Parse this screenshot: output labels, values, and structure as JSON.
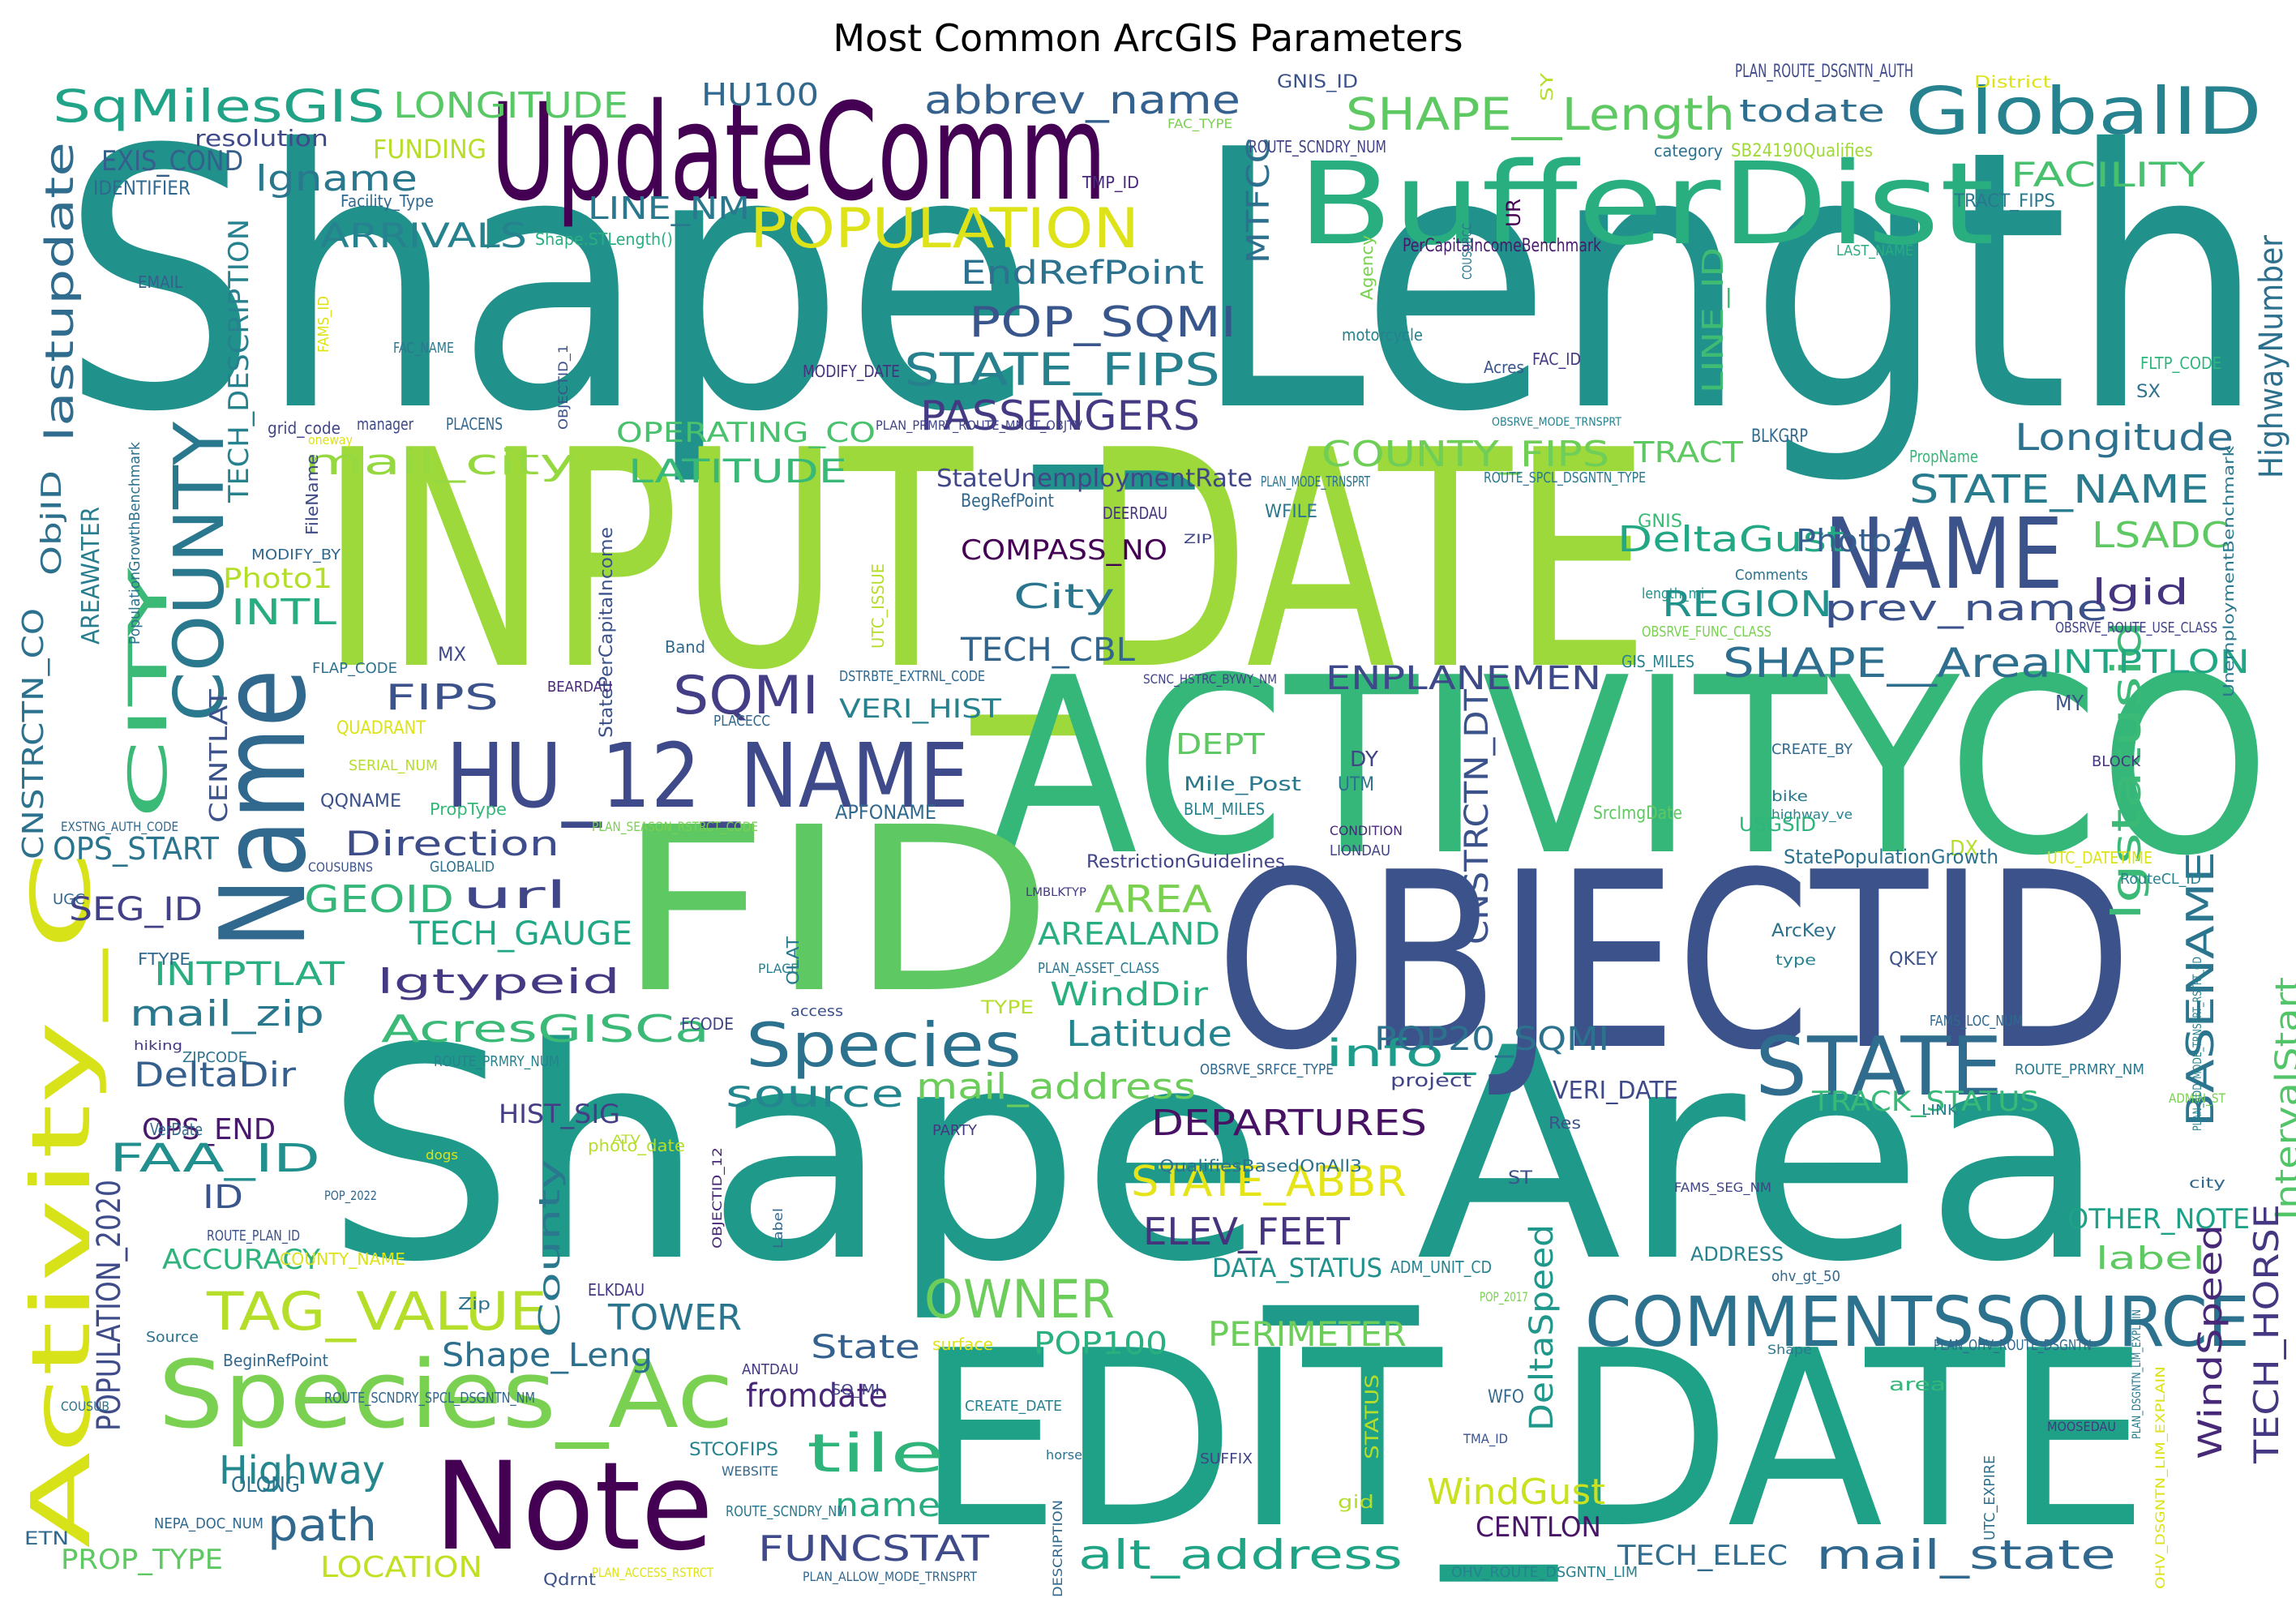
{
  "title": "Most Common ArcGIS Parameters",
  "words": [
    {
      "text": "Shape_Length",
      "color": "#21918c"
    },
    {
      "text": "INPUT_DATE",
      "color": "#9dd93b"
    },
    {
      "text": "Shape_Area",
      "color": "#1f9a8a"
    },
    {
      "text": "ACTIVITYCO",
      "color": "#35b779"
    },
    {
      "text": "EDIT_DATE",
      "color": "#1fa187"
    },
    {
      "text": "OBJECTID",
      "color": "#3b528b"
    },
    {
      "text": "FID",
      "color": "#5ec962"
    },
    {
      "text": "UpdateComm",
      "color": "#440154"
    },
    {
      "text": "BufferDist",
      "color": "#29af7f"
    },
    {
      "text": "Name",
      "color": "#31688e"
    },
    {
      "text": "Note",
      "color": "#440154"
    },
    {
      "text": "HU_12_NAME",
      "color": "#3e4a89"
    },
    {
      "text": "Activity_C",
      "color": "#d8e219"
    },
    {
      "text": "Species_Ac",
      "color": "#7ad151"
    },
    {
      "text": "COMMENTSSOURCE",
      "color": "#2c728e"
    },
    {
      "text": "NAME",
      "color": "#3b528b"
    },
    {
      "text": "STATE",
      "color": "#2f6c8e"
    },
    {
      "text": "COUNTY",
      "color": "#2a788e"
    },
    {
      "text": "GlobalID",
      "color": "#26828e"
    },
    {
      "text": "Species",
      "color": "#2c728e"
    },
    {
      "text": "CITY",
      "color": "#3aba76"
    },
    {
      "text": "POPULATION",
      "color": "#dde318"
    },
    {
      "text": "STATE_FIPS",
      "color": "#27808e"
    },
    {
      "text": "SHAPE__Length",
      "color": "#5ec962"
    },
    {
      "text": "TAG_VALUE",
      "color": "#b5de2b"
    },
    {
      "text": "abbrev_name",
      "color": "#34618d"
    },
    {
      "text": "SqMilesGIS",
      "color": "#20a386"
    },
    {
      "text": "POP_SQMI",
      "color": "#39568c"
    },
    {
      "text": "PASSENGERS",
      "color": "#443a83"
    },
    {
      "text": "SQMI",
      "color": "#433e85"
    },
    {
      "text": "OWNER",
      "color": "#6ccd5a"
    },
    {
      "text": "lastupdate",
      "color": "#2f6c8e"
    },
    {
      "text": "Highway",
      "color": "#24878e"
    },
    {
      "text": "path",
      "color": "#31688e"
    },
    {
      "text": "tile",
      "color": "#2fb47c"
    },
    {
      "text": "alt_address",
      "color": "#20a486"
    },
    {
      "text": "mail_state",
      "color": "#31688e"
    },
    {
      "text": "Longitude",
      "color": "#2d718e"
    },
    {
      "text": "STATE_NAME",
      "color": "#297b8e"
    },
    {
      "text": "SHAPE__Area",
      "color": "#2e6e8e"
    },
    {
      "text": "POPULATION_2020",
      "color": "#3e4c8a"
    },
    {
      "text": "lgstatusid",
      "color": "#3aba76"
    },
    {
      "text": "BASENAME",
      "color": "#2b758e"
    },
    {
      "text": "HighwayNumber",
      "color": "#2d708e"
    },
    {
      "text": "IntervalStart",
      "color": "#52c569"
    },
    {
      "text": "WindSpeed",
      "color": "#482878"
    },
    {
      "text": "TECH_HORSE",
      "color": "#453781"
    },
    {
      "text": "lgname",
      "color": "#2a788e"
    },
    {
      "text": "LONGITUDE",
      "color": "#58c765"
    },
    {
      "text": "FUNDING",
      "color": "#b8de29"
    },
    {
      "text": "HU100",
      "color": "#31688e"
    },
    {
      "text": "ARRIVALS",
      "color": "#26828e"
    },
    {
      "text": "LINE_NM",
      "color": "#2a788e"
    },
    {
      "text": "EndRefPoint",
      "color": "#2c718e"
    },
    {
      "text": "MTFCC",
      "color": "#2d708e"
    },
    {
      "text": "FACILITY",
      "color": "#48c16e"
    },
    {
      "text": "todate",
      "color": "#2e6e8e"
    },
    {
      "text": "COUNTY_FIPS",
      "color": "#6ece58"
    },
    {
      "text": "LATITUDE",
      "color": "#38b977"
    },
    {
      "text": "mail_city",
      "color": "#95d840"
    },
    {
      "text": "OPERATING_CO",
      "color": "#4ac16d"
    },
    {
      "text": "TRACT",
      "color": "#5ec962"
    },
    {
      "text": "LINE_ID",
      "color": "#3fbc73"
    },
    {
      "text": "LSADC",
      "color": "#5ec962"
    },
    {
      "text": "DeltaGust",
      "color": "#22a884"
    },
    {
      "text": "REGION",
      "color": "#21918c"
    },
    {
      "text": "prev_name",
      "color": "#3b528b"
    },
    {
      "text": "lgid",
      "color": "#453581"
    },
    {
      "text": "INTPTLON",
      "color": "#22a785"
    },
    {
      "text": "Photo2",
      "color": "#355f8d"
    },
    {
      "text": "ENPLANEMEN",
      "color": "#3e4989"
    },
    {
      "text": "FIPS",
      "color": "#3b528b"
    },
    {
      "text": "TECH_CBL",
      "color": "#32658e"
    },
    {
      "text": "City",
      "color": "#2a768e"
    },
    {
      "text": "COMPASS_NO",
      "color": "#440154"
    },
    {
      "text": "INTL",
      "color": "#27ad81"
    },
    {
      "text": "Photo1",
      "color": "#b5de2b"
    },
    {
      "text": "ObjID",
      "color": "#2d708e"
    },
    {
      "text": "AREAWATER",
      "color": "#287d8e"
    },
    {
      "text": "TECH_DESCRIPTION",
      "color": "#26828e"
    },
    {
      "text": "EXIS_COND",
      "color": "#355f8d"
    },
    {
      "text": "resolution",
      "color": "#3e4a89"
    },
    {
      "text": "IDENTIFIER",
      "color": "#31688e"
    },
    {
      "text": "StateUnemploymentRate",
      "color": "#404688"
    },
    {
      "text": "GEOID",
      "color": "#35b779"
    },
    {
      "text": "url",
      "color": "#404688"
    },
    {
      "text": "Direction",
      "color": "#3d4d8a"
    },
    {
      "text": "TECH_GAUGE",
      "color": "#22a785"
    },
    {
      "text": "lgtypeid",
      "color": "#443983"
    },
    {
      "text": "AREA",
      "color": "#7ad151"
    },
    {
      "text": "AREALAND",
      "color": "#29af7f"
    },
    {
      "text": "WindDir",
      "color": "#2ab07f"
    },
    {
      "text": "Latitude",
      "color": "#25848e"
    },
    {
      "text": "info_",
      "color": "#1e9b8a"
    },
    {
      "text": "POP20_SQMI",
      "color": "#2c728e"
    },
    {
      "text": "AcresGISCa",
      "color": "#3aba76"
    },
    {
      "text": "mail_zip",
      "color": "#2a788e"
    },
    {
      "text": "INTPTLAT",
      "color": "#29af7f"
    },
    {
      "text": "SEG_ID",
      "color": "#424086"
    },
    {
      "text": "OPS_START",
      "color": "#2b748e"
    },
    {
      "text": "CNSTRCTN_CO",
      "color": "#2c728e"
    },
    {
      "text": "CENTLAT",
      "color": "#3b528b"
    },
    {
      "text": "DeltaDir",
      "color": "#355f8d"
    },
    {
      "text": "OPS_END",
      "color": "#481a6c"
    },
    {
      "text": "FAA_ID",
      "color": "#218f8d"
    },
    {
      "text": "ID",
      "color": "#3a548c"
    },
    {
      "text": "ACCURACY",
      "color": "#2eb37c"
    },
    {
      "text": "source",
      "color": "#24868e"
    },
    {
      "text": "mail_address",
      "color": "#6ccd5a"
    },
    {
      "text": "DEPARTURES",
      "color": "#471164"
    },
    {
      "text": "STATE_ABBR",
      "color": "#e5e419"
    },
    {
      "text": "ELEV_FEET",
      "color": "#46337e"
    },
    {
      "text": "County",
      "color": "#2a788e"
    },
    {
      "text": "TOWER",
      "color": "#2b748e"
    },
    {
      "text": "Shape_Leng",
      "color": "#2d708e"
    },
    {
      "text": "State",
      "color": "#34618d"
    },
    {
      "text": "fromdate",
      "color": "#482677"
    },
    {
      "text": "name",
      "color": "#27ad81"
    },
    {
      "text": "POP100",
      "color": "#2ab07f"
    },
    {
      "text": "PERIMETER",
      "color": "#6ccd5a"
    },
    {
      "text": "FUNCSTAT",
      "color": "#3e4a89"
    },
    {
      "text": "DeltaSpeed",
      "color": "#1f988b"
    },
    {
      "text": "CNSTRCTN_DT",
      "color": "#3b528b"
    },
    {
      "text": "DEPT",
      "color": "#5ec962"
    },
    {
      "text": "VERI_HIST",
      "color": "#26828e"
    },
    {
      "text": "DATA_STATUS",
      "color": "#21918c"
    },
    {
      "text": "VERI_DATE",
      "color": "#3e4989"
    },
    {
      "text": "TRACK_STATUS",
      "color": "#38b977"
    },
    {
      "text": "OTHER_NOTE",
      "color": "#1fa188"
    },
    {
      "text": "label",
      "color": "#5ec962"
    },
    {
      "text": "WindGust",
      "color": "#cae11f"
    },
    {
      "text": "CENTLON",
      "color": "#481567"
    },
    {
      "text": "TECH_ELEC",
      "color": "#2f6c8e"
    },
    {
      "text": "HIST_SIG",
      "color": "#433e85"
    },
    {
      "text": "PROP_TYPE",
      "color": "#5ec962"
    },
    {
      "text": "LOCATION",
      "color": "#c2df23"
    },
    {
      "text": "OLONG",
      "color": "#2d718e"
    },
    {
      "text": "ETN",
      "color": "#31688e"
    },
    {
      "text": "ADDRESS",
      "color": "#26828e"
    },
    {
      "text": "GNIS_ID",
      "color": "#3b528b"
    },
    {
      "text": "PLAN_ROUTE_DSGNTN_AUTH",
      "color": "#3e4a89"
    },
    {
      "text": "District",
      "color": "#dde318"
    },
    {
      "text": "SY",
      "color": "#b5de2b"
    },
    {
      "text": "FAC_TYPE",
      "color": "#7ad151"
    },
    {
      "text": "ROUTE_SCNDRY_NUM",
      "color": "#414487"
    },
    {
      "text": "category",
      "color": "#2c728e"
    },
    {
      "text": "SB24190Qualifies",
      "color": "#a0da39"
    },
    {
      "text": "TRACT_FIPS",
      "color": "#2a788e"
    },
    {
      "text": "TMP_ID",
      "color": "#482878"
    },
    {
      "text": "Facility_Type",
      "color": "#31688e"
    },
    {
      "text": "Shape.STLength()",
      "color": "#29af7f"
    },
    {
      "text": "UR",
      "color": "#440154"
    },
    {
      "text": "PerCapitaIncomeBenchmark",
      "color": "#481a6c"
    },
    {
      "text": "LAST_NAME",
      "color": "#27ad81"
    },
    {
      "text": "COUSUBCC",
      "color": "#2a788e"
    },
    {
      "text": "Agency",
      "color": "#7ad151"
    },
    {
      "text": "EMAIL",
      "color": "#355f8d"
    },
    {
      "text": "FAMS_ID",
      "color": "#dde318"
    },
    {
      "text": "FAC_NAME",
      "color": "#2a788e"
    },
    {
      "text": "motorcycle",
      "color": "#26828e"
    },
    {
      "text": "Acres",
      "color": "#39568c"
    },
    {
      "text": "FAC_ID",
      "color": "#453781"
    },
    {
      "text": "FLTP_CODE",
      "color": "#2fb47c"
    },
    {
      "text": "MODIFY_DATE",
      "color": "#46337e"
    },
    {
      "text": "oneway",
      "color": "#dde318"
    },
    {
      "text": "SX",
      "color": "#2c728e"
    },
    {
      "text": "grid_code",
      "color": "#404688"
    },
    {
      "text": "manager",
      "color": "#3e4989"
    },
    {
      "text": "PLACENS",
      "color": "#31688e"
    },
    {
      "text": "OBJECTID_1",
      "color": "#3b528b"
    },
    {
      "text": "PLAN_PRMRY_ROUTE_MNGT_OBJTV",
      "color": "#414487"
    },
    {
      "text": "OBSRVE_MODE_TRNSPRT",
      "color": "#26828e"
    },
    {
      "text": "BLKGRP",
      "color": "#31688e"
    },
    {
      "text": "PropName",
      "color": "#35b779"
    },
    {
      "text": "FileName",
      "color": "#3e4a89"
    },
    {
      "text": "ROUTE_SPCL_DSGNTN_TYPE",
      "color": "#2a788e"
    },
    {
      "text": "PLAN_MODE_TRNSPRT",
      "color": "#2c728e"
    },
    {
      "text": "BegRefPoint",
      "color": "#31688e"
    },
    {
      "text": "WFILE",
      "color": "#2a788e"
    },
    {
      "text": "DEERDAU",
      "color": "#46337e"
    },
    {
      "text": "GNIS",
      "color": "#3aba76"
    },
    {
      "text": "PopulationGrowthBenchmark",
      "color": "#2c728e"
    },
    {
      "text": "ZIP",
      "color": "#404688"
    },
    {
      "text": "Comments",
      "color": "#2c728e"
    },
    {
      "text": "MODIFY_BY",
      "color": "#31688e"
    },
    {
      "text": "UnemploymentBenchmark",
      "color": "#2a788e"
    },
    {
      "text": "length_mi_",
      "color": "#21918c"
    },
    {
      "text": "OBSRVE_FUNC_CLASS",
      "color": "#7ad151"
    },
    {
      "text": "OBSRVE_ROUTE_USE_CLASS",
      "color": "#414487"
    },
    {
      "text": "UTC_ISSUE",
      "color": "#b5de2b"
    },
    {
      "text": "StatePerCapitaIncome",
      "color": "#3b528b"
    },
    {
      "text": "Band",
      "color": "#31688e"
    },
    {
      "text": "FLAP_CODE",
      "color": "#2c728e"
    },
    {
      "text": "MX",
      "color": "#3e4a89"
    },
    {
      "text": "DSTRBTE_EXTRNL_CODE",
      "color": "#31688e"
    },
    {
      "text": "SCNC_HSTRC_BYWY_NM",
      "color": "#414487"
    },
    {
      "text": "GIS_MILES",
      "color": "#26828e"
    },
    {
      "text": "MY",
      "color": "#3b528b"
    },
    {
      "text": "BEARDAU",
      "color": "#482878"
    },
    {
      "text": "QUADRANT",
      "color": "#dde318"
    },
    {
      "text": "PLACECC",
      "color": "#31688e"
    },
    {
      "text": "SERIAL_NUM",
      "color": "#b5de2b"
    },
    {
      "text": "CREATE_BY",
      "color": "#31688e"
    },
    {
      "text": "BLOCK",
      "color": "#453781"
    },
    {
      "text": "QQNAME",
      "color": "#3b528b"
    },
    {
      "text": "Mile_Post",
      "color": "#2a788e"
    },
    {
      "text": "DY",
      "color": "#414487"
    },
    {
      "text": "UTM",
      "color": "#2c728e"
    },
    {
      "text": "BLM_MILES",
      "color": "#26828e"
    },
    {
      "text": "bike",
      "color": "#2a788e"
    },
    {
      "text": "highway_ve",
      "color": "#26828e"
    },
    {
      "text": "PropType",
      "color": "#35b779"
    },
    {
      "text": "APFONAME",
      "color": "#31688e"
    },
    {
      "text": "PLAN_SEASON_RSTRCT_CODE",
      "color": "#7ad151"
    },
    {
      "text": "CONDITION",
      "color": "#482878"
    },
    {
      "text": "LIONDAU",
      "color": "#414487"
    },
    {
      "text": "SrcImgDate",
      "color": "#5ec962"
    },
    {
      "text": "USGSID",
      "color": "#2fb47c"
    },
    {
      "text": "DX",
      "color": "#b5de2b"
    },
    {
      "text": "EXSTNG_AUTH_CODE",
      "color": "#31688e"
    },
    {
      "text": "StatePopulationGrowth",
      "color": "#2c728e"
    },
    {
      "text": "UTC_DATETIME",
      "color": "#dde318"
    },
    {
      "text": "RestrictionGuidelines",
      "color": "#414487"
    },
    {
      "text": "COUSUBNS",
      "color": "#3b528b"
    },
    {
      "text": "GLOBALID",
      "color": "#2c728e"
    },
    {
      "text": "RouteCL_ID",
      "color": "#26828e"
    },
    {
      "text": "UGC",
      "color": "#31688e"
    },
    {
      "text": "OLAT",
      "color": "#2a788e"
    },
    {
      "text": "LMBLKTYP",
      "color": "#453781"
    },
    {
      "text": "PLAN_ASSET_CLASS",
      "color": "#2a788e"
    },
    {
      "text": "ArcKey",
      "color": "#2c728e"
    },
    {
      "text": "type",
      "color": "#26828e"
    },
    {
      "text": "QKEY",
      "color": "#3b528b"
    },
    {
      "text": "FTYPE",
      "color": "#31688e"
    },
    {
      "text": "FCODE",
      "color": "#414487"
    },
    {
      "text": "PLACE",
      "color": "#26828e"
    },
    {
      "text": "TYPE",
      "color": "#b5de2b"
    },
    {
      "text": "access",
      "color": "#3b528b"
    },
    {
      "text": "FAMS_LOC_NUM",
      "color": "#31688e"
    },
    {
      "text": "ZIPCODE",
      "color": "#2c728e"
    },
    {
      "text": "hiking",
      "color": "#453781"
    },
    {
      "text": "ROUTE_PRMRY_NUM",
      "color": "#26828e"
    },
    {
      "text": "OBSRVE_SRFCE_TYPE",
      "color": "#31688e"
    },
    {
      "text": "ROUTE_PRMRY_NM",
      "color": "#2a788e"
    },
    {
      "text": "photo_date",
      "color": "#b5de2b"
    },
    {
      "text": "project",
      "color": "#414487"
    },
    {
      "text": "VerDate",
      "color": "#31688e"
    },
    {
      "text": "ADMIN_ST",
      "color": "#7ad151"
    },
    {
      "text": "LINK",
      "color": "#26828e"
    },
    {
      "text": "Res",
      "color": "#3b528b"
    },
    {
      "text": "ATV",
      "color": "#b5de2b"
    },
    {
      "text": "dogs",
      "color": "#dde318"
    },
    {
      "text": "PARTY",
      "color": "#453781"
    },
    {
      "text": "QualifiesBasedOnAll3",
      "color": "#2c728e"
    },
    {
      "text": "city",
      "color": "#31688e"
    },
    {
      "text": "PLAN_ADD_MODE_TRNSPRT_RSTRT_CD",
      "color": "#26828e"
    },
    {
      "text": "POP_2022",
      "color": "#31688e"
    },
    {
      "text": "ROUTE_PLAN_ID",
      "color": "#3b528b"
    },
    {
      "text": "COUNTY_NAME",
      "color": "#dde318"
    },
    {
      "text": "OBJECTID_12",
      "color": "#482878"
    },
    {
      "text": "ST",
      "color": "#3b528b"
    },
    {
      "text": "FAMS_SEG_NM",
      "color": "#414487"
    },
    {
      "text": "ADM_UNIT_CD",
      "color": "#26828e"
    },
    {
      "text": "ohv_gt_50",
      "color": "#31688e"
    },
    {
      "text": "POP_2017",
      "color": "#7ad151"
    },
    {
      "text": "Zip",
      "color": "#2c728e"
    },
    {
      "text": "Label",
      "color": "#31688e"
    },
    {
      "text": "ELKDAU",
      "color": "#453781"
    },
    {
      "text": "Source",
      "color": "#2c728e"
    },
    {
      "text": "BeginRefPoint",
      "color": "#31688e"
    },
    {
      "text": "surface",
      "color": "#dde318"
    },
    {
      "text": "SQ_MI",
      "color": "#414487"
    },
    {
      "text": "ANTDAU",
      "color": "#453781"
    },
    {
      "text": "CREATE_DATE",
      "color": "#26828e"
    },
    {
      "text": "STATUS",
      "color": "#b5de2b"
    },
    {
      "text": "Shape",
      "color": "#2a788e"
    },
    {
      "text": "PLAN_OHV_ROUTE_DSGNTN",
      "color": "#31688e"
    },
    {
      "text": "area",
      "color": "#35b779"
    },
    {
      "text": "PLAN_DSGNTN_LIM_EXPLAIN",
      "color": "#2a788e"
    },
    {
      "text": "ROUTE_SCNDRY_SPCL_DSGNTN_NM",
      "color": "#31688e"
    },
    {
      "text": "COUSUB",
      "color": "#2c728e"
    },
    {
      "text": "STCOFIPS",
      "color": "#26828e"
    },
    {
      "text": "WEBSITE",
      "color": "#31688e"
    },
    {
      "text": "horse",
      "color": "#2c728e"
    },
    {
      "text": "SUFFIX",
      "color": "#414487"
    },
    {
      "text": "TMA_ID",
      "color": "#3b528b"
    },
    {
      "text": "WFO",
      "color": "#31688e"
    },
    {
      "text": "MOOSEDAU",
      "color": "#453781"
    },
    {
      "text": "UTC_EXPIRE",
      "color": "#2c728e"
    },
    {
      "text": "NEPA_DOC_NUM",
      "color": "#31688e"
    },
    {
      "text": "ROUTE_SCNDRY_NM",
      "color": "#2a788e"
    },
    {
      "text": "gid",
      "color": "#b5de2b"
    },
    {
      "text": "OHV_DSGNTN_LIM_EXPLAIN",
      "color": "#dde318"
    },
    {
      "text": "DESCRIPTION",
      "color": "#31688e"
    },
    {
      "text": "Qdrnt",
      "color": "#3b528b"
    },
    {
      "text": "PLAN_ACCESS_RSTRCT",
      "color": "#dde318"
    },
    {
      "text": "PLAN_ALLOW_MODE_TRNSPRT",
      "color": "#31688e"
    },
    {
      "text": "OHV_ROUTE_DSGNTN_LIM",
      "color": "#26828e"
    }
  ]
}
